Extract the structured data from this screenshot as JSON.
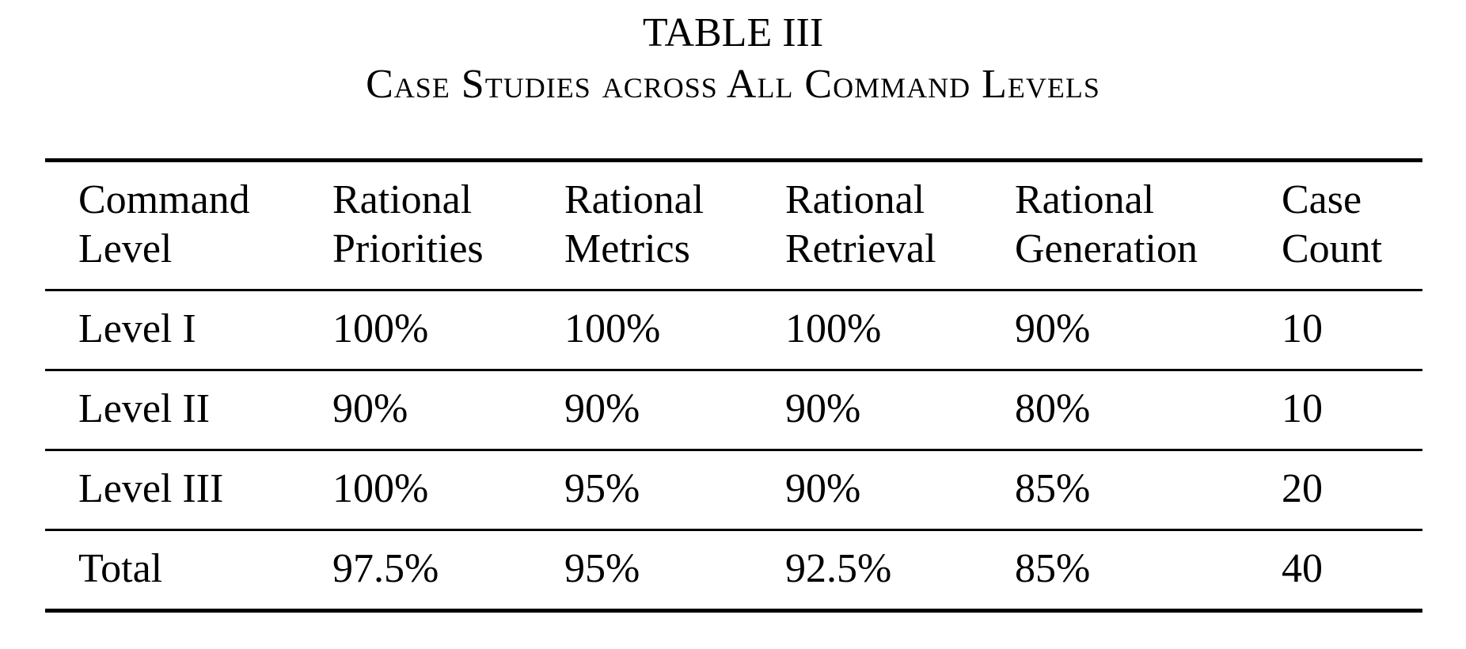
{
  "caption": {
    "label": "TABLE III",
    "title": "Case Studies across All Command Levels"
  },
  "table": {
    "headers": [
      [
        "Command",
        "Level"
      ],
      [
        "Rational",
        "Priorities"
      ],
      [
        "Rational",
        "Metrics"
      ],
      [
        "Rational",
        "Retrieval"
      ],
      [
        "Rational",
        "Generation"
      ],
      [
        "Case",
        "Count"
      ]
    ],
    "rows": [
      [
        "Level I",
        "100%",
        "100%",
        "100%",
        "90%",
        "10"
      ],
      [
        "Level II",
        "90%",
        "90%",
        "90%",
        "80%",
        "10"
      ],
      [
        "Level III",
        "100%",
        "95%",
        "90%",
        "85%",
        "20"
      ],
      [
        "Total",
        "97.5%",
        "95%",
        "92.5%",
        "85%",
        "40"
      ]
    ]
  }
}
